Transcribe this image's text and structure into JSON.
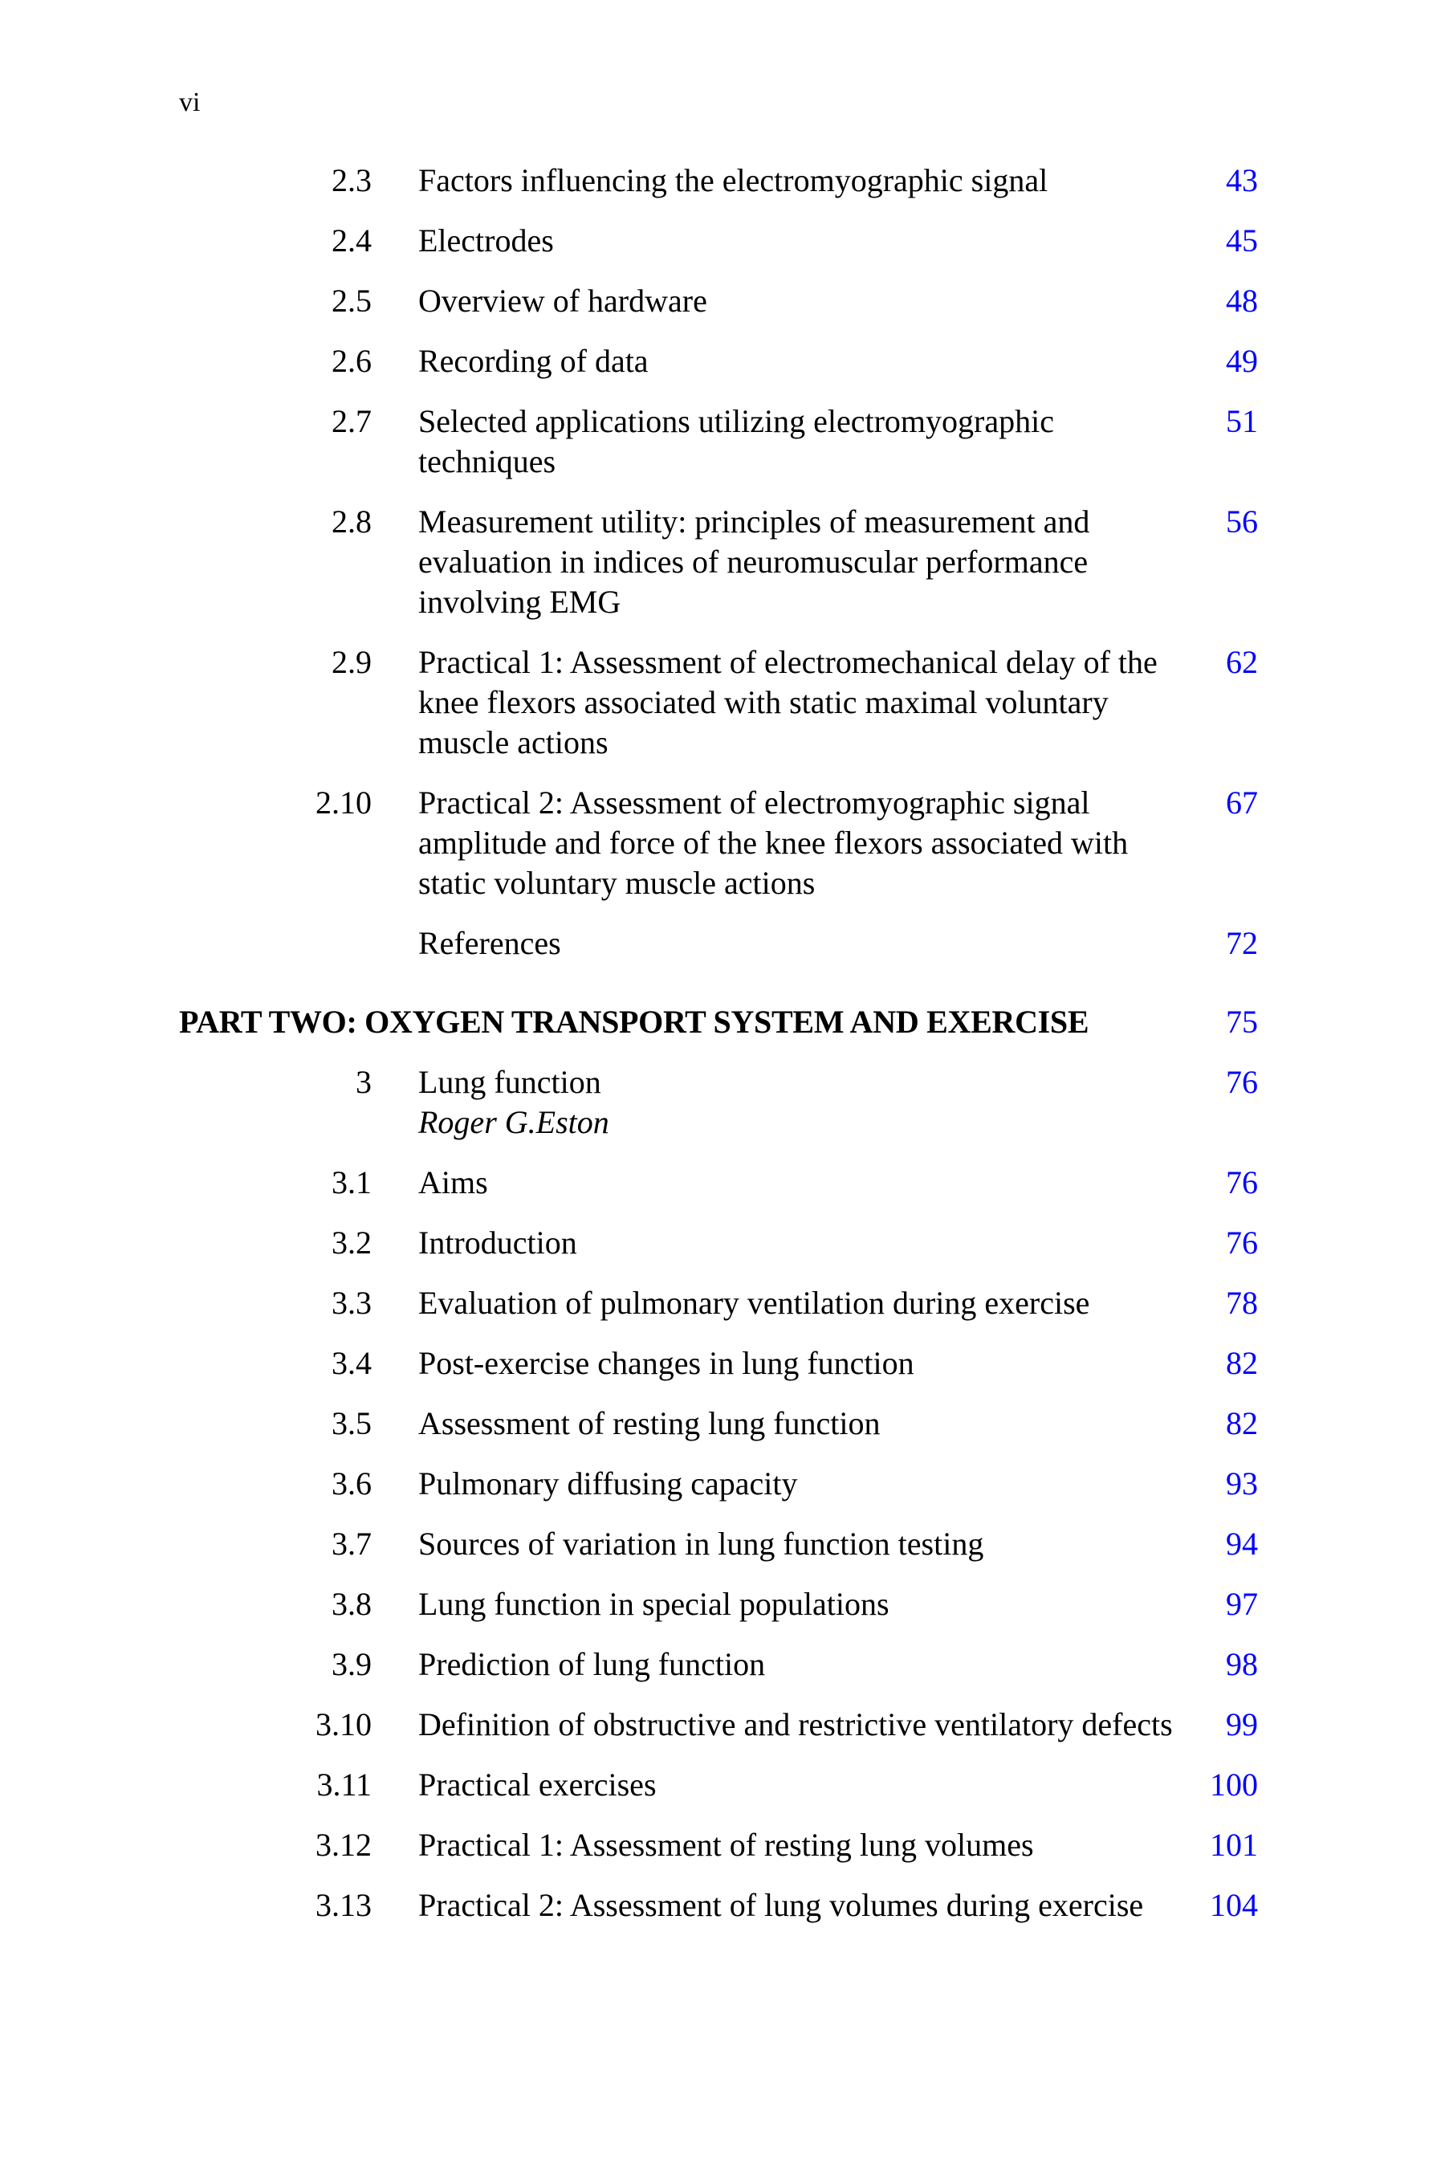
{
  "folio": "vi",
  "link_color": "#0000ff",
  "entries": [
    {
      "num": "2.3",
      "lines": [
        "Factors influencing the electromyographic signal"
      ],
      "page": "43"
    },
    {
      "num": "2.4",
      "lines": [
        "Electrodes"
      ],
      "page": "45"
    },
    {
      "num": "2.5",
      "lines": [
        "Overview of hardware"
      ],
      "page": "48"
    },
    {
      "num": "2.6",
      "lines": [
        "Recording of data"
      ],
      "page": "49"
    },
    {
      "num": "2.7",
      "lines": [
        "Selected applications utilizing electromyographic",
        "techniques"
      ],
      "page": "51"
    },
    {
      "num": "2.8",
      "lines": [
        "Measurement utility: principles of measurement and",
        "evaluation in indices of neuromuscular performance",
        "involving EMG"
      ],
      "page": "56"
    },
    {
      "num": "2.9",
      "lines": [
        "Practical 1: Assessment of electromechanical delay of the",
        "knee flexors associated with static maximal voluntary",
        "muscle actions"
      ],
      "page": "62"
    },
    {
      "num": "2.10",
      "lines": [
        "Practical 2: Assessment of electromyographic signal",
        "amplitude and force of the knee flexors associated with",
        "static voluntary muscle actions"
      ],
      "page": "67"
    },
    {
      "num": "",
      "lines": [
        "References"
      ],
      "page": "72"
    },
    {
      "num": "",
      "part": true,
      "lines": [
        "PART TWO: OXYGEN TRANSPORT SYSTEM AND EXERCISE"
      ],
      "page": "75"
    },
    {
      "num": "3",
      "lines": [
        "Lung function"
      ],
      "author": "Roger G.Eston",
      "page": "76"
    },
    {
      "num": "3.1",
      "lines": [
        "Aims"
      ],
      "page": "76"
    },
    {
      "num": "3.2",
      "lines": [
        "Introduction"
      ],
      "page": "76"
    },
    {
      "num": "3.3",
      "lines": [
        "Evaluation of pulmonary ventilation during exercise"
      ],
      "page": "78"
    },
    {
      "num": "3.4",
      "lines": [
        "Post-exercise changes in lung function"
      ],
      "page": "82"
    },
    {
      "num": "3.5",
      "lines": [
        "Assessment of resting lung function"
      ],
      "page": "82"
    },
    {
      "num": "3.6",
      "lines": [
        "Pulmonary diffusing capacity"
      ],
      "page": "93"
    },
    {
      "num": "3.7",
      "lines": [
        "Sources of variation in lung function testing"
      ],
      "page": "94"
    },
    {
      "num": "3.8",
      "lines": [
        "Lung function in special populations"
      ],
      "page": "97"
    },
    {
      "num": "3.9",
      "lines": [
        "Prediction of lung function"
      ],
      "page": "98"
    },
    {
      "num": "3.10",
      "lines": [
        "Definition of obstructive and restrictive ventilatory defects"
      ],
      "page": "99"
    },
    {
      "num": "3.11",
      "lines": [
        "Practical exercises"
      ],
      "page": "100"
    },
    {
      "num": "3.12",
      "lines": [
        "Practical 1: Assessment of resting lung volumes"
      ],
      "page": "101"
    },
    {
      "num": "3.13",
      "lines": [
        "Practical 2: Assessment of lung volumes during exercise"
      ],
      "page": "104"
    }
  ]
}
